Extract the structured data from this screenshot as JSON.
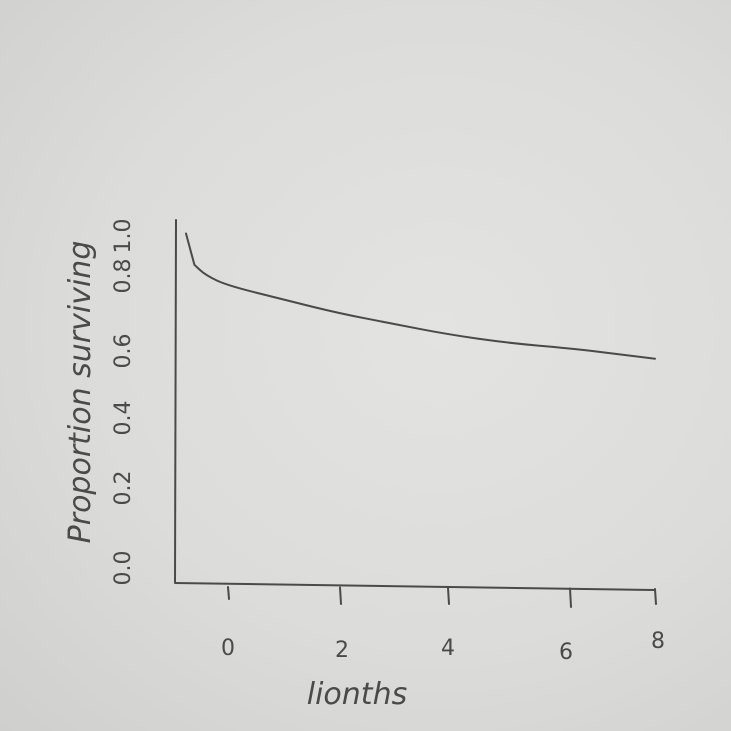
{
  "chart_data": {
    "type": "line",
    "xlabel": "lionths",
    "ylabel": "Proportion surviving",
    "x_ticks": [
      "0",
      "2",
      "4",
      "6",
      "8"
    ],
    "y_ticks": [
      "0.0",
      "0.2",
      "0.4",
      "0.6",
      "0.8",
      "1.0"
    ],
    "xlim": [
      -0.75,
      8
    ],
    "ylim": [
      0,
      1.0
    ],
    "grid": false,
    "series": [
      {
        "x": [
          -0.75,
          -0.6,
          -0.4,
          0,
          1,
          2,
          3,
          4,
          5,
          6,
          7,
          8
        ],
        "y": [
          0.99,
          0.9,
          0.87,
          0.84,
          0.8,
          0.76,
          0.73,
          0.7,
          0.675,
          0.66,
          0.645,
          0.63
        ]
      }
    ]
  }
}
